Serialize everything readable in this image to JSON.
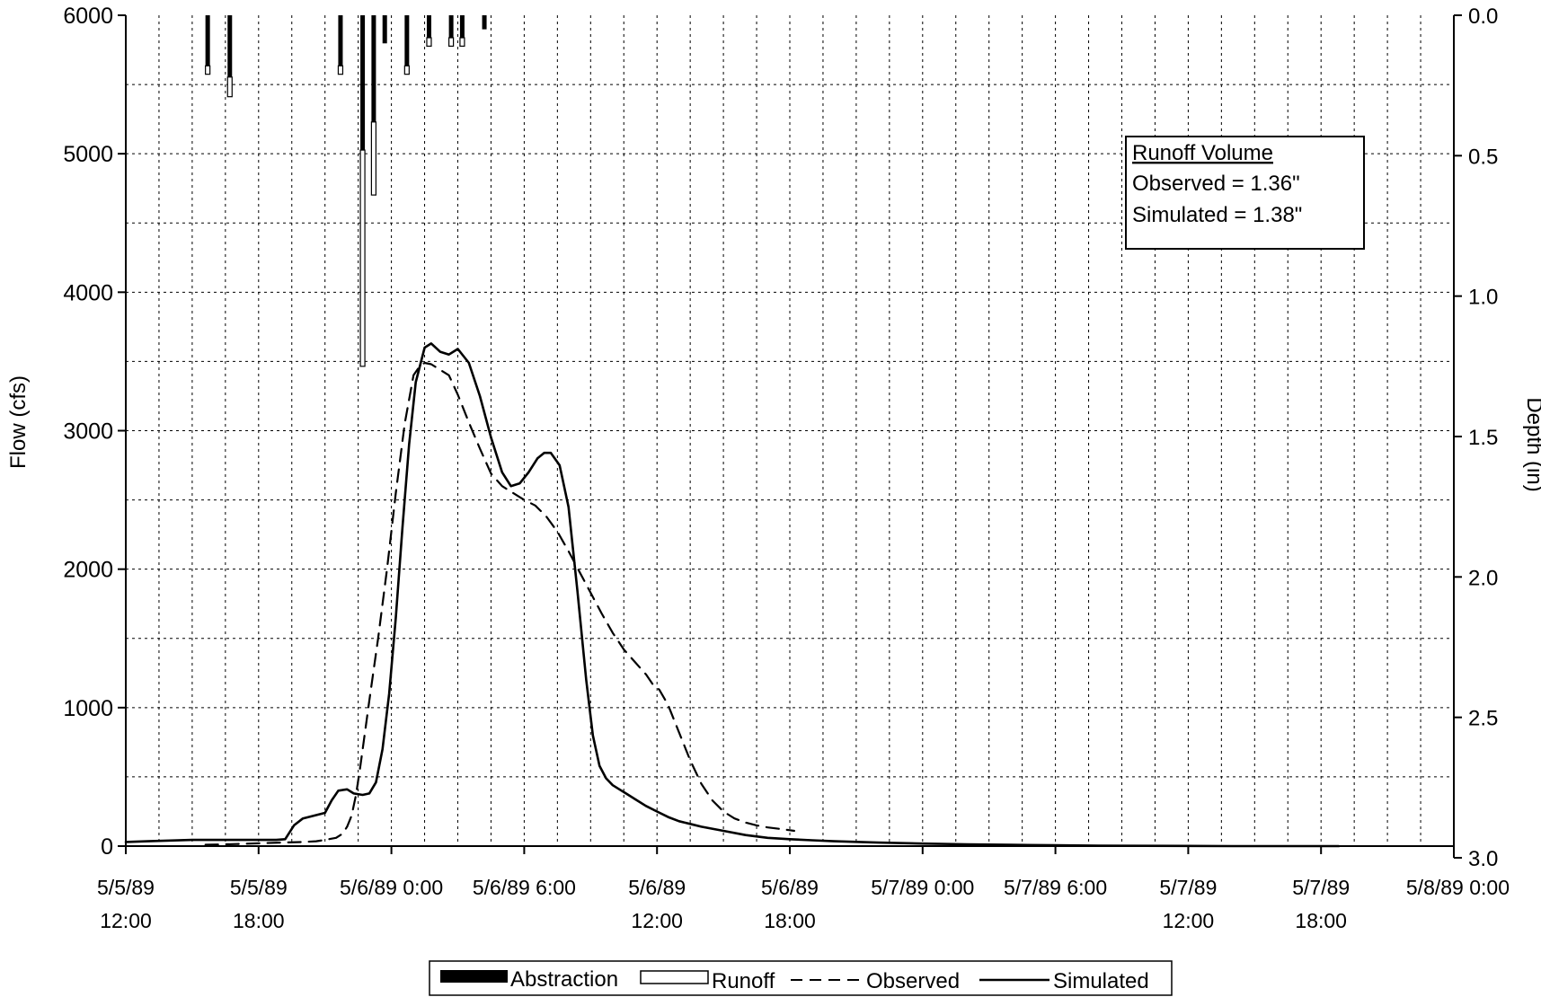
{
  "chart_data": {
    "type": "line",
    "y_left": {
      "label": "Flow (cfs)",
      "ticks": [
        "6000",
        "5000",
        "4000",
        "3000",
        "2000",
        "1000",
        "0"
      ],
      "range": [
        0,
        6000
      ]
    },
    "y_right": {
      "label": "Depth (in)",
      "ticks": [
        "0.0",
        "0.5",
        "1.0",
        "1.5",
        "2.0",
        "2.5",
        "3.0"
      ],
      "range": [
        0,
        3.0
      ],
      "inverted": true
    },
    "x_axis": {
      "unit": "hours since 5/5/89 12:00",
      "range": [
        0,
        60
      ],
      "ticks": [
        {
          "hour": 0,
          "line1": "5/5/89",
          "line2": "12:00"
        },
        {
          "hour": 6,
          "line1": "5/5/89",
          "line2": "18:00"
        },
        {
          "hour": 12,
          "line1": "5/6/89 0:00",
          "line2": ""
        },
        {
          "hour": 18,
          "line1": "5/6/89 6:00",
          "line2": ""
        },
        {
          "hour": 24,
          "line1": "5/6/89",
          "line2": "12:00"
        },
        {
          "hour": 30,
          "line1": "5/6/89",
          "line2": "18:00"
        },
        {
          "hour": 36,
          "line1": "5/7/89 0:00",
          "line2": ""
        },
        {
          "hour": 42,
          "line1": "5/7/89 6:00",
          "line2": ""
        },
        {
          "hour": 48,
          "line1": "5/7/89",
          "line2": "12:00"
        },
        {
          "hour": 54,
          "line1": "5/7/89",
          "line2": "18:00"
        },
        {
          "hour": 60,
          "line1": "5/8/89 0:00",
          "line2": ""
        }
      ]
    },
    "grid": true,
    "annotation": {
      "title": "Runoff Volume",
      "lines": [
        "Observed = 1.36\"",
        "Simulated = 1.38\""
      ]
    },
    "legend": {
      "placement": "bottom",
      "items": [
        {
          "label": "Abstraction",
          "style": "filled-bar"
        },
        {
          "label": "Runoff",
          "style": "open-bar"
        },
        {
          "label": "Observed",
          "style": "dashed-line"
        },
        {
          "label": "Simulated",
          "style": "solid-line"
        }
      ]
    },
    "hyetograph": [
      {
        "hour": 3.7,
        "abstraction": 0.18,
        "runoff": 0.03
      },
      {
        "hour": 4.7,
        "abstraction": 0.22,
        "runoff": 0.07
      },
      {
        "hour": 9.7,
        "abstraction": 0.18,
        "runoff": 0.03
      },
      {
        "hour": 10.7,
        "abstraction": 0.48,
        "runoff": 0.77
      },
      {
        "hour": 11.2,
        "abstraction": 0.38,
        "runoff": 0.26
      },
      {
        "hour": 11.7,
        "abstraction": 0.1,
        "runoff": 0.0
      },
      {
        "hour": 12.7,
        "abstraction": 0.18,
        "runoff": 0.03
      },
      {
        "hour": 13.7,
        "abstraction": 0.08,
        "runoff": 0.03
      },
      {
        "hour": 14.7,
        "abstraction": 0.08,
        "runoff": 0.03
      },
      {
        "hour": 15.2,
        "abstraction": 0.08,
        "runoff": 0.03
      },
      {
        "hour": 16.2,
        "abstraction": 0.05,
        "runoff": 0.0
      }
    ],
    "series": [
      {
        "name": "Simulated",
        "style": "solid",
        "x": [
          0,
          1,
          2,
          3,
          4,
          5,
          6,
          6.8,
          7.2,
          7.6,
          8,
          8.5,
          9,
          9.3,
          9.6,
          10,
          10.3,
          10.7,
          11,
          11.3,
          11.6,
          11.9,
          12.2,
          12.5,
          12.8,
          13.1,
          13.5,
          13.8,
          14.2,
          14.6,
          15,
          15.5,
          16,
          16.5,
          17,
          17.4,
          17.8,
          18.2,
          18.6,
          18.9,
          19.2,
          19.6,
          20,
          20.4,
          20.8,
          21.1,
          21.4,
          21.7,
          22,
          22.3,
          22.6,
          23,
          23.5,
          24,
          24.5,
          25,
          25.5,
          26,
          27,
          28,
          29,
          30,
          31,
          32,
          34,
          36,
          38,
          40,
          42,
          44,
          46,
          48,
          50,
          52,
          54,
          54.8
        ],
        "y": [
          30,
          35,
          40,
          45,
          45,
          45,
          45,
          45,
          50,
          150,
          200,
          220,
          240,
          330,
          400,
          410,
          380,
          370,
          380,
          460,
          700,
          1100,
          1650,
          2300,
          2900,
          3350,
          3600,
          3630,
          3570,
          3550,
          3590,
          3490,
          3250,
          2950,
          2700,
          2600,
          2620,
          2700,
          2800,
          2840,
          2840,
          2750,
          2450,
          1850,
          1200,
          800,
          580,
          490,
          440,
          410,
          380,
          340,
          290,
          250,
          210,
          180,
          160,
          140,
          110,
          80,
          60,
          50,
          42,
          35,
          25,
          18,
          13,
          9,
          6,
          3,
          2,
          1,
          0,
          0,
          0,
          0
        ]
      },
      {
        "name": "Observed",
        "style": "dashed",
        "x": [
          3.6,
          5,
          6,
          7,
          8,
          8.6,
          9,
          9.5,
          9.8,
          10,
          10.2,
          10.4,
          10.6,
          11,
          11.4,
          11.8,
          12.2,
          12.6,
          13,
          13.3,
          13.5,
          13.8,
          14.2,
          14.6,
          15,
          15.5,
          16,
          16.5,
          17,
          17.5,
          18,
          18.5,
          19,
          19.5,
          20,
          20.5,
          21,
          21.5,
          22,
          22.5,
          23,
          23.5,
          23.8,
          24.1,
          24.5,
          25,
          25.5,
          26,
          26.5,
          27,
          27.5,
          28,
          28.5,
          29,
          29.5,
          30,
          30.2
        ],
        "y": [
          10,
          15,
          20,
          25,
          30,
          35,
          45,
          60,
          90,
          140,
          220,
          370,
          580,
          1050,
          1500,
          2000,
          2550,
          3050,
          3400,
          3470,
          3490,
          3480,
          3440,
          3400,
          3260,
          3060,
          2870,
          2690,
          2600,
          2550,
          2500,
          2460,
          2380,
          2270,
          2130,
          1980,
          1830,
          1680,
          1540,
          1420,
          1330,
          1240,
          1170,
          1130,
          1020,
          820,
          620,
          450,
          330,
          250,
          200,
          170,
          150,
          135,
          125,
          115,
          110
        ]
      }
    ]
  }
}
